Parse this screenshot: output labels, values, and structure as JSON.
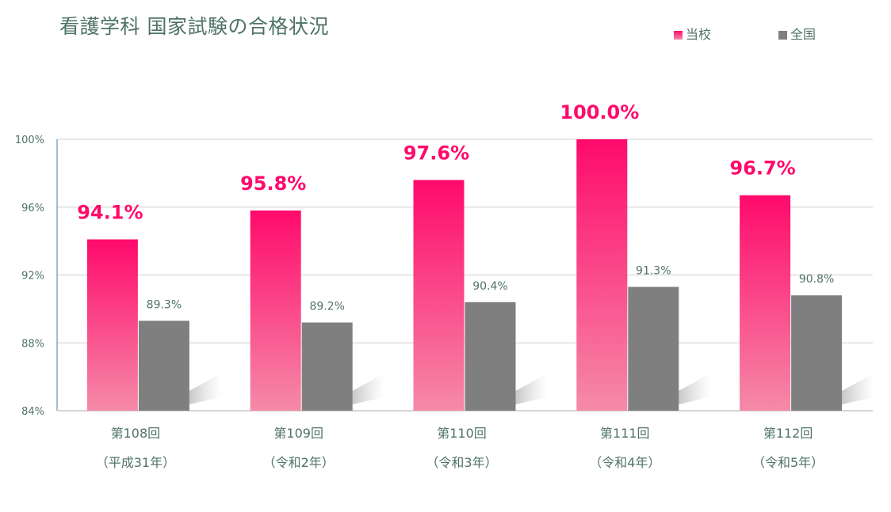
{
  "title": "看護学科 国家試験の合格状況",
  "legend": [
    {
      "label": "当校",
      "color": "#ff0a6c"
    },
    {
      "label": "全国",
      "color": "#7f7f7f"
    }
  ],
  "chart_data": {
    "type": "bar",
    "title": "看護学科 国家試験の合格状況",
    "categories": [
      [
        "第108回",
        "（平成31年）"
      ],
      [
        "第109回",
        "（令和2年）"
      ],
      [
        "第110回",
        "（令和3年）"
      ],
      [
        "第111回",
        "（令和4年）"
      ],
      [
        "第112回",
        "（令和5年）"
      ]
    ],
    "series": [
      {
        "name": "当校",
        "values": [
          94.1,
          95.8,
          97.6,
          100.0,
          96.7
        ],
        "labels": [
          "94.1%",
          "95.8%",
          "97.6%",
          "100.0%",
          "96.7%"
        ],
        "color": "#ff0a6c"
      },
      {
        "name": "全国",
        "values": [
          89.3,
          89.2,
          90.4,
          91.3,
          90.8
        ],
        "labels": [
          "89.3%",
          "89.2%",
          "90.4%",
          "91.3%",
          "90.8%"
        ],
        "color": "#7f7f7f"
      }
    ],
    "ylim": [
      84,
      100
    ],
    "yticks": [
      84,
      88,
      92,
      96,
      100
    ],
    "ytick_labels": [
      "84%",
      "88%",
      "92%",
      "96%",
      "100%"
    ],
    "grid": true,
    "legend_position": "top-right"
  }
}
